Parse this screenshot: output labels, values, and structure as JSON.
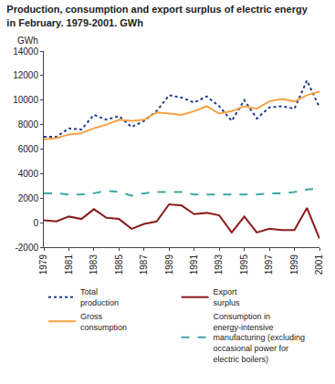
{
  "chart_data": {
    "type": "line",
    "title": "Production, consumption and export surplus of electric energy in February. 1979-2001. GWh",
    "ylabel": "GWh",
    "x": [
      1979,
      1980,
      1981,
      1982,
      1983,
      1984,
      1985,
      1986,
      1987,
      1988,
      1989,
      1990,
      1991,
      1992,
      1993,
      1994,
      1995,
      1996,
      1997,
      1998,
      1999,
      2000,
      2001
    ],
    "xlim": [
      1979,
      2001
    ],
    "xticks": [
      1979,
      1981,
      1983,
      1985,
      1987,
      1989,
      1991,
      1993,
      1995,
      1997,
      1999,
      2001
    ],
    "ylim": [
      -2000,
      14000
    ],
    "yticks": [
      -2000,
      0,
      2000,
      4000,
      6000,
      8000,
      10000,
      12000,
      14000
    ],
    "grid": false,
    "legend": "bottom",
    "series": [
      {
        "name": "Total production",
        "color": "#1f3b8c",
        "line_style": "dotted",
        "values": [
          7000,
          7000,
          7700,
          7600,
          8800,
          8400,
          8700,
          7800,
          8300,
          9100,
          10400,
          10200,
          9800,
          10300,
          9500,
          8300,
          10000,
          8500,
          9400,
          9500,
          9300,
          11600,
          9400
        ]
      },
      {
        "name": "Export surplus",
        "color": "#8b1c1c",
        "line_style": "solid",
        "values": [
          200,
          100,
          500,
          300,
          1100,
          400,
          300,
          -500,
          -100,
          100,
          1500,
          1400,
          700,
          800,
          600,
          -800,
          500,
          -800,
          -500,
          -600,
          -600,
          1200,
          -1300
        ]
      },
      {
        "name": "Gross consumption",
        "color": "#f5a243",
        "line_style": "solid",
        "values": [
          6800,
          6900,
          7200,
          7300,
          7700,
          8000,
          8400,
          8300,
          8400,
          9000,
          8900,
          8800,
          9100,
          9500,
          8900,
          9100,
          9500,
          9300,
          9900,
          10100,
          9900,
          10400,
          10700
        ]
      },
      {
        "name": "Consumption in energy-intensive manufacturing (excluding occasional power for electric boilers)",
        "color": "#3aa8a2",
        "line_style": "dashed",
        "values": [
          2400,
          2400,
          2300,
          2300,
          2400,
          2600,
          2500,
          2200,
          2400,
          2500,
          2500,
          2500,
          2300,
          2300,
          2300,
          2300,
          2300,
          2300,
          2400,
          2400,
          2500,
          2700,
          2800
        ]
      }
    ]
  }
}
